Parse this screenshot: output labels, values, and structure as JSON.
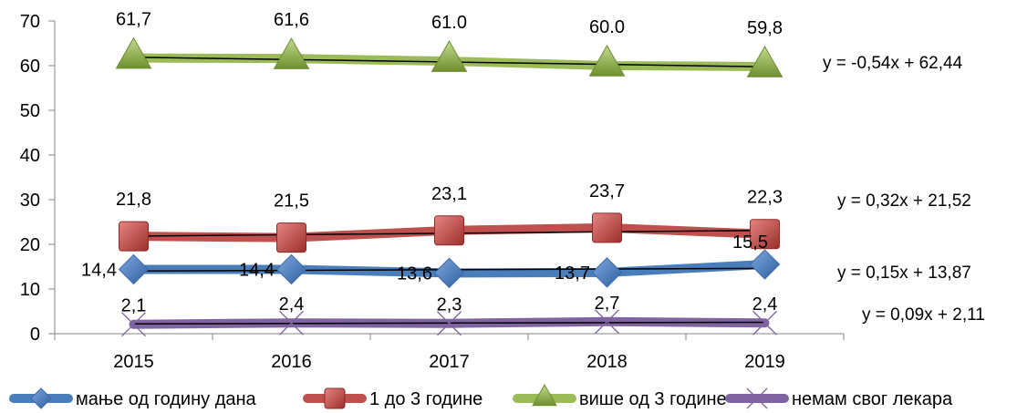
{
  "chart_data": {
    "type": "line",
    "categories": [
      "2015",
      "2016",
      "2017",
      "2018",
      "2019"
    ],
    "ylim": [
      0,
      70
    ],
    "yticks": [
      0,
      10,
      20,
      30,
      40,
      50,
      60,
      70
    ],
    "grid": false,
    "legend_position": "bottom",
    "series": [
      {
        "name": "мање од годину дана",
        "values": [
          14.4,
          14.4,
          13.6,
          13.7,
          15.5
        ],
        "labels": [
          "14,4",
          "14,4",
          "13,6",
          "13,7",
          "15,5"
        ],
        "color": "#4A7EBB",
        "marker": "diamond",
        "trend_equation": "y = 0,15x + 13,87",
        "trend": [
          0.15,
          13.87
        ]
      },
      {
        "name": "1 до 3 године",
        "values": [
          21.8,
          21.5,
          23.1,
          23.7,
          22.3
        ],
        "labels": [
          "21,8",
          "21,5",
          "23,1",
          "23,7",
          "22,3"
        ],
        "color": "#C0504D",
        "marker": "square",
        "trend_equation": "y = 0,32x + 21,52",
        "trend": [
          0.32,
          21.52
        ]
      },
      {
        "name": "више од 3 године",
        "values": [
          61.7,
          61.6,
          61.0,
          60.0,
          59.8
        ],
        "labels": [
          "61,7",
          "61,6",
          "61.0",
          "60.0",
          "59,8"
        ],
        "color": "#9BBB59",
        "marker": "triangle",
        "trend_equation": "y = -0,54x + 62,44",
        "trend": [
          -0.54,
          62.44
        ]
      },
      {
        "name": "немам свог лекара",
        "values": [
          2.1,
          2.4,
          2.3,
          2.7,
          2.4
        ],
        "labels": [
          "2,1",
          "2,4",
          "2,3",
          "2,7",
          "2,4"
        ],
        "color": "#8064A2",
        "marker": "x",
        "trend_equation": "y = 0,09x + 2,11",
        "trend": [
          0.09,
          2.11
        ]
      }
    ]
  }
}
